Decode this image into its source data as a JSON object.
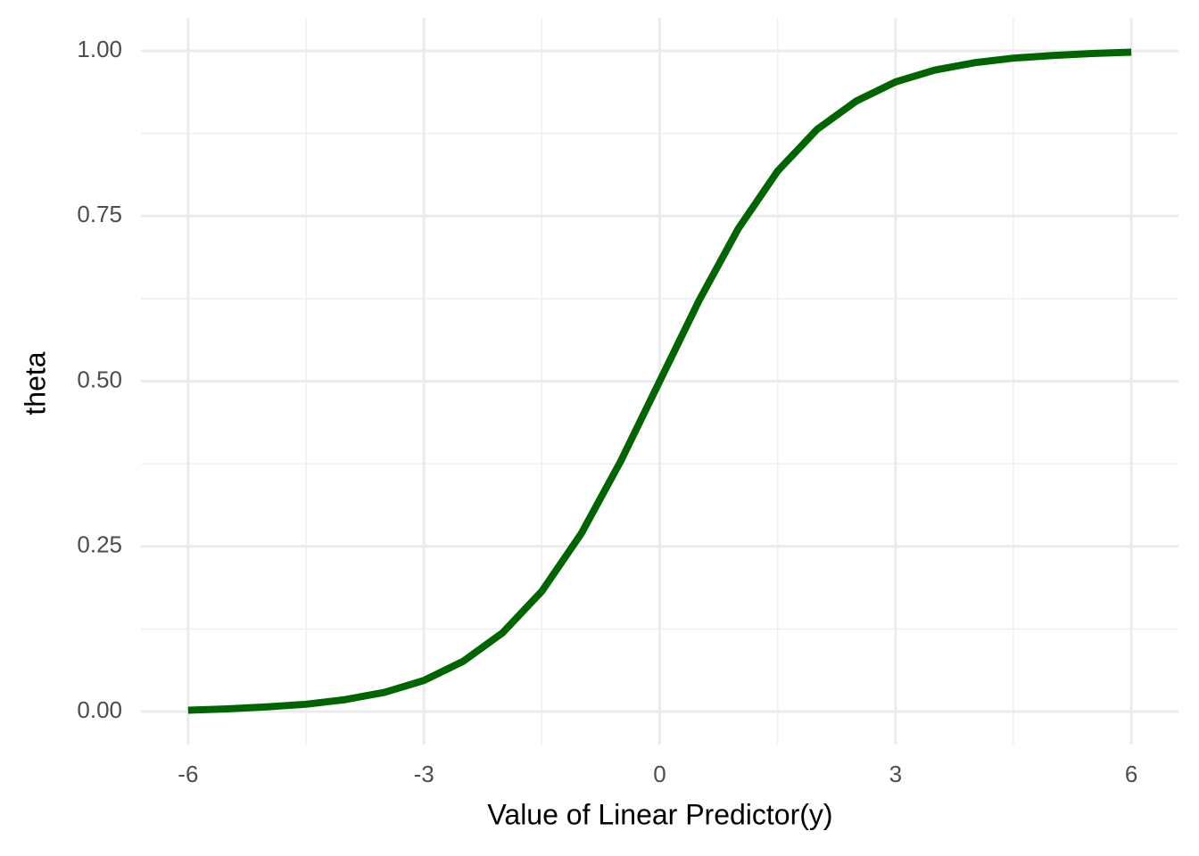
{
  "chart_data": {
    "type": "line",
    "xlabel": "Value of Linear Predictor(y)",
    "ylabel": "theta",
    "x": [
      -6,
      -5.5,
      -5,
      -4.5,
      -4,
      -3.5,
      -3,
      -2.5,
      -2,
      -1.5,
      -1,
      -0.5,
      0,
      0.5,
      1,
      1.5,
      2,
      2.5,
      3,
      3.5,
      4,
      4.5,
      5,
      5.5,
      6
    ],
    "series": [
      {
        "color": "#006400",
        "values": [
          0.002,
          0.004,
          0.007,
          0.011,
          0.018,
          0.029,
          0.047,
          0.076,
          0.119,
          0.182,
          0.269,
          0.378,
          0.5,
          0.622,
          0.731,
          0.818,
          0.881,
          0.924,
          0.953,
          0.971,
          0.982,
          0.989,
          0.993,
          0.996,
          0.998
        ]
      }
    ],
    "xlim": [
      -6.6,
      6.6
    ],
    "ylim": [
      -0.05,
      1.05
    ],
    "xticks": [
      -6,
      -3,
      0,
      3,
      6
    ],
    "yticks": [
      {
        "value": 0,
        "label": "0.00"
      },
      {
        "value": 0.25,
        "label": "0.25"
      },
      {
        "value": 0.5,
        "label": "0.50"
      },
      {
        "value": 0.75,
        "label": "0.75"
      },
      {
        "value": 1,
        "label": "1.00"
      }
    ],
    "xminor": [
      -4.5,
      -1.5,
      1.5,
      4.5
    ],
    "yminor": [
      0.125,
      0.375,
      0.625,
      0.875
    ],
    "grid": true
  }
}
